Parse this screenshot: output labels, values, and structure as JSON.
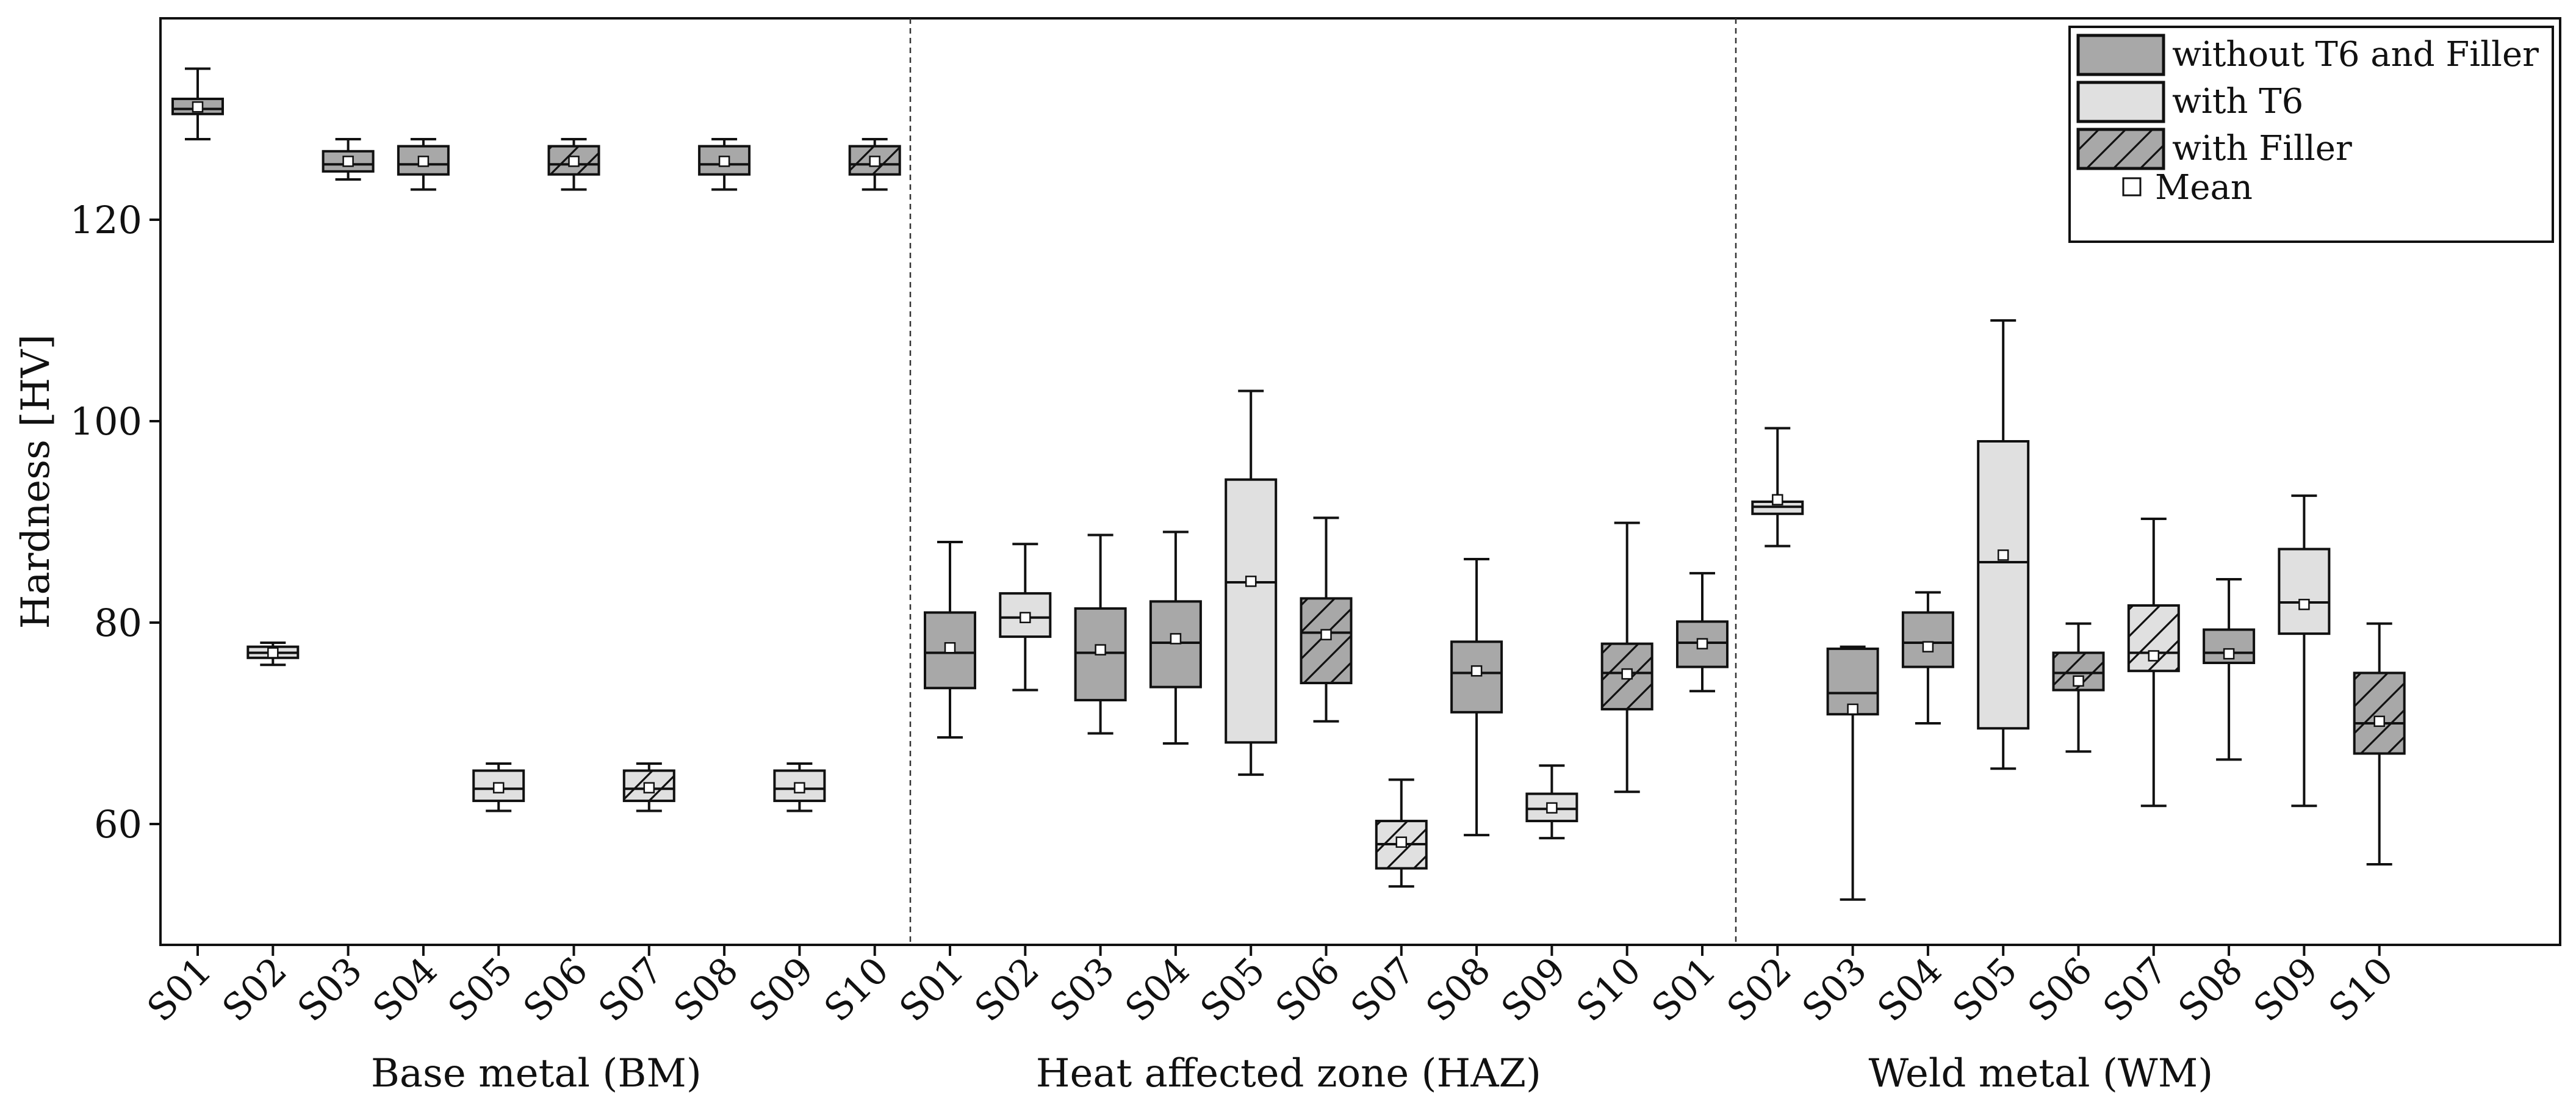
{
  "chart_data": {
    "type": "box",
    "title": "",
    "ylabel": "Hardness [HV]",
    "ylim": [
      48,
      140
    ],
    "yticks": [
      60,
      80,
      100,
      120
    ],
    "grid": false,
    "legend": {
      "placement": "top-right",
      "entries": [
        {
          "key": "none",
          "label": "without T6 and Filler"
        },
        {
          "key": "t6",
          "label": "with T6"
        },
        {
          "key": "filler",
          "label": "with Filler"
        },
        {
          "key": "mean",
          "label": "Mean"
        }
      ]
    },
    "styles": {
      "none": {
        "fill": "#a8a8a8",
        "hatch": false
      },
      "t6": {
        "fill": "#e0e0e0",
        "hatch": false
      },
      "filler_dark": {
        "fill": "#a8a8a8",
        "hatch": true
      },
      "filler_light": {
        "fill": "#e0e0e0",
        "hatch": true
      }
    },
    "groups": [
      {
        "name": "Base metal (BM)",
        "samples": [
          {
            "label": "S01",
            "style": "none",
            "whisker_low": 128,
            "q1": 130.5,
            "median": 131,
            "q3": 132,
            "whisker_high": 135,
            "mean": 131.2
          },
          {
            "label": "S02",
            "style": "t6",
            "whisker_low": 75.8,
            "q1": 76.5,
            "median": 77,
            "q3": 77.6,
            "whisker_high": 78,
            "mean": 77
          },
          {
            "label": "S03",
            "style": "none",
            "whisker_low": 124,
            "q1": 124.8,
            "median": 125.5,
            "q3": 126.8,
            "whisker_high": 128,
            "mean": 125.8
          },
          {
            "label": "S04",
            "style": "none",
            "whisker_low": 123,
            "q1": 124.5,
            "median": 125.5,
            "q3": 127.3,
            "whisker_high": 128,
            "mean": 125.8
          },
          {
            "label": "S05",
            "style": "t6",
            "whisker_low": 61.3,
            "q1": 62.3,
            "median": 63.5,
            "q3": 65.3,
            "whisker_high": 66,
            "mean": 63.6
          },
          {
            "label": "S06",
            "style": "filler_dark",
            "whisker_low": 123,
            "q1": 124.5,
            "median": 125.5,
            "q3": 127.3,
            "whisker_high": 128,
            "mean": 125.8
          },
          {
            "label": "S07",
            "style": "filler_light",
            "whisker_low": 61.3,
            "q1": 62.3,
            "median": 63.5,
            "q3": 65.3,
            "whisker_high": 66,
            "mean": 63.6
          },
          {
            "label": "S08",
            "style": "none",
            "whisker_low": 123,
            "q1": 124.5,
            "median": 125.5,
            "q3": 127.3,
            "whisker_high": 128,
            "mean": 125.8
          },
          {
            "label": "S09",
            "style": "t6",
            "whisker_low": 61.3,
            "q1": 62.3,
            "median": 63.5,
            "q3": 65.3,
            "whisker_high": 66,
            "mean": 63.6
          },
          {
            "label": "S10",
            "style": "filler_dark",
            "whisker_low": 123,
            "q1": 124.5,
            "median": 125.5,
            "q3": 127.3,
            "whisker_high": 128,
            "mean": 125.8
          }
        ]
      },
      {
        "name": "Heat affected zone (HAZ)",
        "samples": [
          {
            "label": "S01",
            "style": "none",
            "whisker_low": 68.6,
            "q1": 73.5,
            "median": 77,
            "q3": 81,
            "whisker_high": 88,
            "mean": 77.5
          },
          {
            "label": "S02",
            "style": "t6",
            "whisker_low": 73.3,
            "q1": 78.6,
            "median": 80.5,
            "q3": 82.9,
            "whisker_high": 87.8,
            "mean": 80.5
          },
          {
            "label": "S03",
            "style": "none",
            "whisker_low": 69,
            "q1": 72.3,
            "median": 77,
            "q3": 81.4,
            "whisker_high": 88.7,
            "mean": 77.3
          },
          {
            "label": "S04",
            "style": "none",
            "whisker_low": 68,
            "q1": 73.6,
            "median": 78,
            "q3": 82.1,
            "whisker_high": 89,
            "mean": 78.4
          },
          {
            "label": "S05",
            "style": "t6",
            "whisker_low": 64.9,
            "q1": 68.1,
            "median": 84,
            "q3": 94.2,
            "whisker_high": 103,
            "mean": 84.1
          },
          {
            "label": "S06",
            "style": "filler_dark",
            "whisker_low": 70.2,
            "q1": 74,
            "median": 79,
            "q3": 82.4,
            "whisker_high": 90.4,
            "mean": 78.8
          },
          {
            "label": "S07",
            "style": "filler_light",
            "whisker_low": 53.8,
            "q1": 55.6,
            "median": 58,
            "q3": 60.3,
            "whisker_high": 64.4,
            "mean": 58.2
          },
          {
            "label": "S08",
            "style": "none",
            "whisker_low": 58.9,
            "q1": 71.1,
            "median": 75,
            "q3": 78.1,
            "whisker_high": 86.3,
            "mean": 75.2
          },
          {
            "label": "S09",
            "style": "t6",
            "whisker_low": 58.6,
            "q1": 60.3,
            "median": 61.5,
            "q3": 63,
            "whisker_high": 65.8,
            "mean": 61.6
          },
          {
            "label": "S10",
            "style": "filler_dark",
            "whisker_low": 63.2,
            "q1": 71.4,
            "median": 75,
            "q3": 77.9,
            "whisker_high": 89.9,
            "mean": 74.9
          }
        ]
      },
      {
        "name": "Weld metal (WM)",
        "samples": [
          {
            "label": "S01",
            "style": "none",
            "whisker_low": 73.2,
            "q1": 75.6,
            "median": 78,
            "q3": 80.1,
            "whisker_high": 84.9,
            "mean": 77.9
          },
          {
            "label": "S02",
            "style": "t6",
            "whisker_low": 87.6,
            "q1": 90.8,
            "median": 91.5,
            "q3": 92,
            "whisker_high": 99.3,
            "mean": 92.2
          },
          {
            "label": "S03",
            "style": "none",
            "whisker_low": 52.5,
            "q1": 70.9,
            "median": 73,
            "q3": 77.4,
            "whisker_high": 77.6,
            "mean": 71.4
          },
          {
            "label": "S04",
            "style": "none",
            "whisker_low": 70,
            "q1": 75.6,
            "median": 78,
            "q3": 81,
            "whisker_high": 83,
            "mean": 77.6
          },
          {
            "label": "S05",
            "style": "t6",
            "whisker_low": 65.5,
            "q1": 69.5,
            "median": 86,
            "q3": 98,
            "whisker_high": 110,
            "mean": 86.7
          },
          {
            "label": "S06",
            "style": "filler_dark",
            "whisker_low": 67.2,
            "q1": 73.3,
            "median": 75,
            "q3": 77,
            "whisker_high": 79.9,
            "mean": 74.2
          },
          {
            "label": "S07",
            "style": "filler_light",
            "whisker_low": 61.8,
            "q1": 75.2,
            "median": 77,
            "q3": 81.7,
            "whisker_high": 90.3,
            "mean": 76.7
          },
          {
            "label": "S08",
            "style": "none",
            "whisker_low": 66.4,
            "q1": 76,
            "median": 77,
            "q3": 79.3,
            "whisker_high": 84.3,
            "mean": 76.9
          },
          {
            "label": "S09",
            "style": "t6",
            "whisker_low": 61.8,
            "q1": 78.9,
            "median": 82,
            "q3": 87.3,
            "whisker_high": 92.6,
            "mean": 81.8
          },
          {
            "label": "S10",
            "style": "filler_dark",
            "whisker_low": 56,
            "q1": 67,
            "median": 70,
            "q3": 75,
            "whisker_high": 79.9,
            "mean": 70.2
          }
        ]
      }
    ]
  }
}
